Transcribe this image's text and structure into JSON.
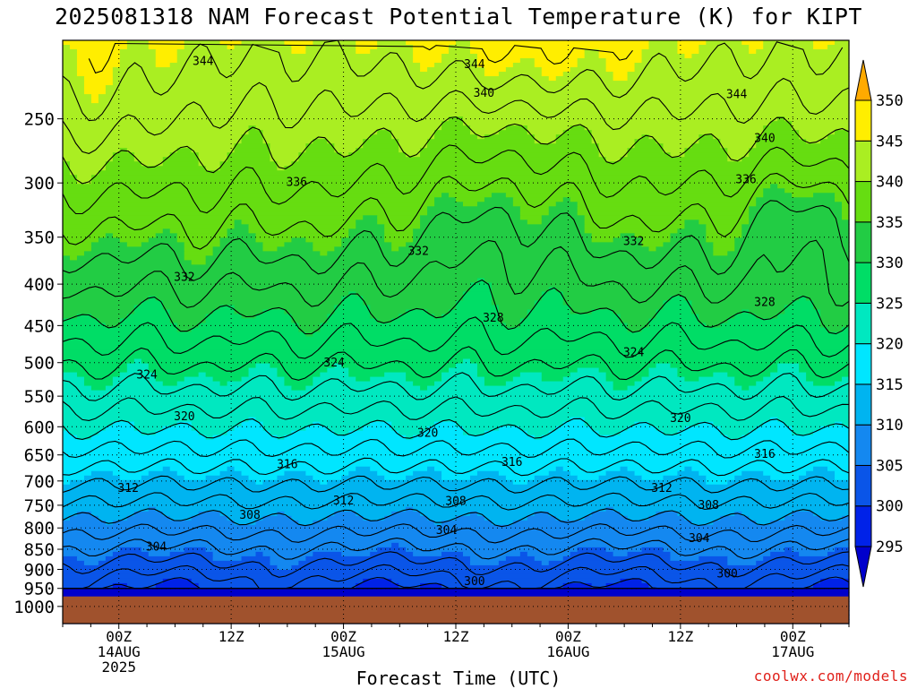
{
  "chart_data": {
    "type": "heatmap",
    "title": "2025081318 NAM Forecast Potential Temperature (K) for KIPT",
    "xlabel": "Forecast Time (UTC)",
    "ylabel": "",
    "x_ticks": [
      {
        "hour": 6,
        "lines": [
          "00Z",
          "14AUG",
          "2025"
        ]
      },
      {
        "hour": 18,
        "lines": [
          "12Z"
        ]
      },
      {
        "hour": 30,
        "lines": [
          "00Z",
          "15AUG"
        ]
      },
      {
        "hour": 42,
        "lines": [
          "12Z"
        ]
      },
      {
        "hour": 54,
        "lines": [
          "00Z",
          "16AUG"
        ]
      },
      {
        "hour": 66,
        "lines": [
          "12Z"
        ]
      },
      {
        "hour": 78,
        "lines": [
          "00Z",
          "17AUG"
        ]
      }
    ],
    "xlim": [
      0,
      84
    ],
    "y_ticks": [
      250,
      300,
      350,
      400,
      450,
      500,
      550,
      600,
      650,
      700,
      750,
      800,
      850,
      900,
      950,
      1000
    ],
    "ylim": [
      1050,
      200
    ],
    "y_scale": "log-pressure",
    "grid": true,
    "ground_pressure": 972,
    "colorbar": {
      "levels": [
        295,
        300,
        305,
        310,
        315,
        320,
        325,
        330,
        335,
        340,
        345,
        350
      ],
      "colors": [
        "#0000cc",
        "#0022e8",
        "#0a55e8",
        "#1488f0",
        "#00b4f0",
        "#00e6ff",
        "#00e8c0",
        "#00dd66",
        "#22cc44",
        "#66dd11",
        "#aaee22",
        "#ffee00",
        "#ffaa00"
      ],
      "extend": "both"
    },
    "ground_color": "#a0522d",
    "contour_interval": 2,
    "contour_labels": [
      {
        "value": 344,
        "hour": 15,
        "p": 212
      },
      {
        "value": 344,
        "hour": 44,
        "p": 214
      },
      {
        "value": 344,
        "hour": 72,
        "p": 233
      },
      {
        "value": 340,
        "hour": 45,
        "p": 232
      },
      {
        "value": 340,
        "hour": 75,
        "p": 264
      },
      {
        "value": 336,
        "hour": 25,
        "p": 299
      },
      {
        "value": 336,
        "hour": 73,
        "p": 297
      },
      {
        "value": 332,
        "hour": 13,
        "p": 392
      },
      {
        "value": 332,
        "hour": 38,
        "p": 364
      },
      {
        "value": 332,
        "hour": 61,
        "p": 354
      },
      {
        "value": 328,
        "hour": 46,
        "p": 440
      },
      {
        "value": 328,
        "hour": 75,
        "p": 421
      },
      {
        "value": 324,
        "hour": 9,
        "p": 517
      },
      {
        "value": 324,
        "hour": 29,
        "p": 500
      },
      {
        "value": 324,
        "hour": 61,
        "p": 485
      },
      {
        "value": 320,
        "hour": 13,
        "p": 582
      },
      {
        "value": 320,
        "hour": 39,
        "p": 610
      },
      {
        "value": 320,
        "hour": 66,
        "p": 585
      },
      {
        "value": 316,
        "hour": 24,
        "p": 667
      },
      {
        "value": 316,
        "hour": 48,
        "p": 663
      },
      {
        "value": 316,
        "hour": 75,
        "p": 648
      },
      {
        "value": 312,
        "hour": 7,
        "p": 714
      },
      {
        "value": 312,
        "hour": 30,
        "p": 740
      },
      {
        "value": 312,
        "hour": 64,
        "p": 714
      },
      {
        "value": 308,
        "hour": 20,
        "p": 771
      },
      {
        "value": 308,
        "hour": 42,
        "p": 741
      },
      {
        "value": 308,
        "hour": 69,
        "p": 749
      },
      {
        "value": 304,
        "hour": 10,
        "p": 843
      },
      {
        "value": 304,
        "hour": 41,
        "p": 805
      },
      {
        "value": 304,
        "hour": 68,
        "p": 823
      },
      {
        "value": 300,
        "hour": 44,
        "p": 930
      },
      {
        "value": 300,
        "hour": 71,
        "p": 910
      }
    ]
  },
  "credit": "coolwx.com/models"
}
